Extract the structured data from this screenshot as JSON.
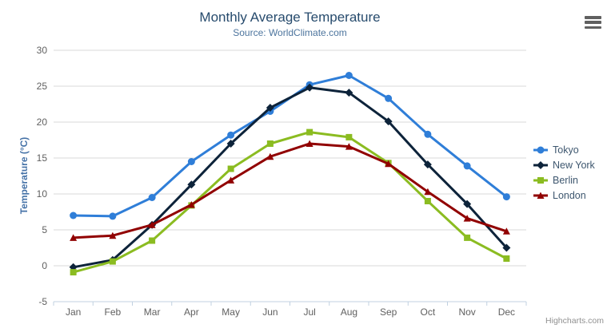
{
  "credits": {
    "label": "Highcharts.com"
  },
  "icons": {
    "context_menu": "hamburger-menu-icon"
  },
  "colors": {
    "title": "#274b6d",
    "subtitle": "#4d759e",
    "axis_label": "#606060",
    "y_axis_title": "#4572a7",
    "legend_text": "#3e576f",
    "gridline": "#d8d8d8",
    "axis_line": "#c0d0e0",
    "credits": "#909090",
    "background": "#ffffff"
  },
  "chart_data": {
    "type": "line",
    "title": "Monthly Average Temperature",
    "subtitle": "Source: WorldClimate.com",
    "xlabel": "",
    "ylabel": "Temperature (°C)",
    "categories": [
      "Jan",
      "Feb",
      "Mar",
      "Apr",
      "May",
      "Jun",
      "Jul",
      "Aug",
      "Sep",
      "Oct",
      "Nov",
      "Dec"
    ],
    "series": [
      {
        "name": "Tokyo",
        "color": "#2f7ed8",
        "marker": "circle",
        "values": [
          7.0,
          6.9,
          9.5,
          14.5,
          18.2,
          21.5,
          25.2,
          26.5,
          23.3,
          18.3,
          13.9,
          9.6
        ]
      },
      {
        "name": "New York",
        "color": "#0d233a",
        "marker": "diamond",
        "values": [
          -0.2,
          0.8,
          5.7,
          11.3,
          17.0,
          22.0,
          24.8,
          24.1,
          20.1,
          14.1,
          8.6,
          2.5
        ]
      },
      {
        "name": "Berlin",
        "color": "#8bbc21",
        "marker": "square",
        "values": [
          -0.9,
          0.6,
          3.5,
          8.4,
          13.5,
          17.0,
          18.6,
          17.9,
          14.3,
          9.0,
          3.9,
          1.0
        ]
      },
      {
        "name": "London",
        "color": "#910000",
        "marker": "triangle",
        "values": [
          3.9,
          4.2,
          5.7,
          8.5,
          11.9,
          15.2,
          17.0,
          16.6,
          14.2,
          10.3,
          6.6,
          4.8
        ]
      }
    ],
    "ylim": [
      -5,
      30
    ],
    "y_tick_interval": 5,
    "grid": true,
    "legend_position": "right"
  }
}
